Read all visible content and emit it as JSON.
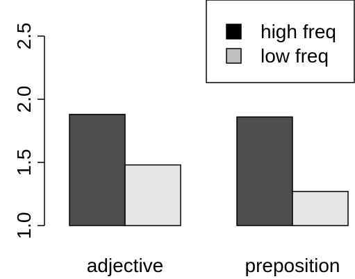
{
  "chart_data": {
    "type": "bar",
    "categories": [
      "adjective",
      "preposition"
    ],
    "series": [
      {
        "name": "high freq",
        "values": [
          1.88,
          1.86
        ],
        "color": "#4d4d4d"
      },
      {
        "name": "low freq",
        "values": [
          1.48,
          1.27
        ],
        "color": "#e6e6e6"
      }
    ],
    "yticks": [
      "1.0",
      "1.5",
      "2.0",
      "2.5"
    ],
    "ylim": [
      1.0,
      2.5
    ],
    "legend": {
      "position": "top-right",
      "swatch_colors": [
        "#000000",
        "#bebebe"
      ]
    },
    "grid": false,
    "title": "",
    "xlabel": "",
    "ylabel": ""
  }
}
